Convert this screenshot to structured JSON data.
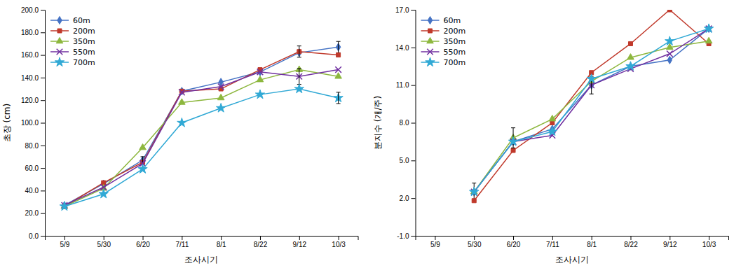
{
  "chart_data": [
    {
      "type": "line",
      "xlabel": "조사시기",
      "ylabel": "초장 (cm)",
      "categories": [
        "5/9",
        "5/30",
        "6/20",
        "7/11",
        "8/1",
        "8/22",
        "9/12",
        "10/3"
      ],
      "ylim": [
        0.0,
        200.0
      ],
      "yticks": [
        {
          "value": 0,
          "label": "0.0"
        },
        {
          "value": 20,
          "label": "20.0"
        },
        {
          "value": 40,
          "label": "40.0"
        },
        {
          "value": 60,
          "label": "60.0"
        },
        {
          "value": 80,
          "label": "80.0"
        },
        {
          "value": 100,
          "label": "100.0"
        },
        {
          "value": 120,
          "label": "120.0"
        },
        {
          "value": 140,
          "label": "140.0"
        },
        {
          "value": 160,
          "label": "160.0"
        },
        {
          "value": 180,
          "label": "180.0"
        },
        {
          "value": 200,
          "label": "200.0"
        }
      ],
      "grid": false,
      "legend": "upper left",
      "series": [
        {
          "name": "60m",
          "color": "#4472C4",
          "marker": "diamond",
          "values": [
            27,
            46,
            67,
            128,
            136,
            145,
            162,
            167
          ],
          "errors": [
            null,
            null,
            null,
            null,
            null,
            null,
            null,
            5
          ]
        },
        {
          "name": "200m",
          "color": "#C0392B",
          "marker": "square",
          "values": [
            26,
            47,
            65,
            128,
            130,
            147,
            163,
            160
          ],
          "errors": [
            null,
            null,
            5,
            null,
            null,
            null,
            5,
            null
          ]
        },
        {
          "name": "350m",
          "color": "#8DB73E",
          "marker": "triangle",
          "values": [
            26,
            42,
            78,
            118,
            122,
            138,
            147,
            141
          ],
          "errors": [
            null,
            null,
            null,
            null,
            null,
            null,
            null,
            null
          ]
        },
        {
          "name": "550m",
          "color": "#7030A0",
          "marker": "x",
          "values": [
            27,
            43,
            64,
            127,
            132,
            145,
            141,
            147
          ],
          "errors": [
            null,
            null,
            null,
            null,
            null,
            null,
            7,
            null
          ]
        },
        {
          "name": "700m",
          "color": "#31A9D5",
          "marker": "star",
          "values": [
            26,
            37,
            59,
            100,
            113,
            125,
            130,
            122
          ],
          "errors": [
            null,
            null,
            null,
            null,
            null,
            null,
            null,
            5
          ]
        }
      ]
    },
    {
      "type": "line",
      "xlabel": "조사시기",
      "ylabel": "분지수 (개/주)",
      "categories": [
        "5/9",
        "5/30",
        "6/20",
        "7/11",
        "8/1",
        "8/22",
        "9/12",
        "10/3"
      ],
      "ylim": [
        -1.0,
        17.0
      ],
      "yticks": [
        {
          "value": -1,
          "label": "-1.0"
        },
        {
          "value": 2,
          "label": "2.0"
        },
        {
          "value": 5,
          "label": "5.0"
        },
        {
          "value": 8,
          "label": "8.0"
        },
        {
          "value": 11,
          "label": "11.0"
        },
        {
          "value": 14,
          "label": "14.0"
        },
        {
          "value": 17,
          "label": "17.0"
        }
      ],
      "grid": false,
      "legend": "upper left",
      "series": [
        {
          "name": "60m",
          "color": "#4472C4",
          "marker": "diamond",
          "values": [
            null,
            2.5,
            6.5,
            7.5,
            11.0,
            12.5,
            13.0,
            15.5
          ],
          "errors": [
            null,
            0.7,
            null,
            null,
            null,
            null,
            null,
            null
          ]
        },
        {
          "name": "200m",
          "color": "#C0392B",
          "marker": "square",
          "values": [
            null,
            1.8,
            5.8,
            8.0,
            12.0,
            14.3,
            17.0,
            14.3
          ],
          "errors": [
            null,
            null,
            null,
            null,
            null,
            null,
            null,
            null
          ]
        },
        {
          "name": "350m",
          "color": "#8DB73E",
          "marker": "triangle",
          "values": [
            null,
            2.5,
            6.8,
            8.3,
            11.3,
            13.2,
            14.0,
            14.5
          ],
          "errors": [
            null,
            null,
            0.8,
            null,
            null,
            null,
            null,
            null
          ]
        },
        {
          "name": "550m",
          "color": "#7030A0",
          "marker": "x",
          "values": [
            null,
            2.5,
            6.5,
            7.0,
            11.0,
            12.3,
            13.5,
            15.5
          ],
          "errors": [
            null,
            null,
            null,
            null,
            0.7,
            null,
            null,
            null
          ]
        },
        {
          "name": "700m",
          "color": "#31A9D5",
          "marker": "star",
          "values": [
            null,
            2.5,
            6.5,
            7.3,
            11.5,
            12.5,
            14.5,
            15.5
          ],
          "errors": [
            null,
            null,
            null,
            null,
            null,
            null,
            null,
            null
          ]
        }
      ]
    }
  ]
}
